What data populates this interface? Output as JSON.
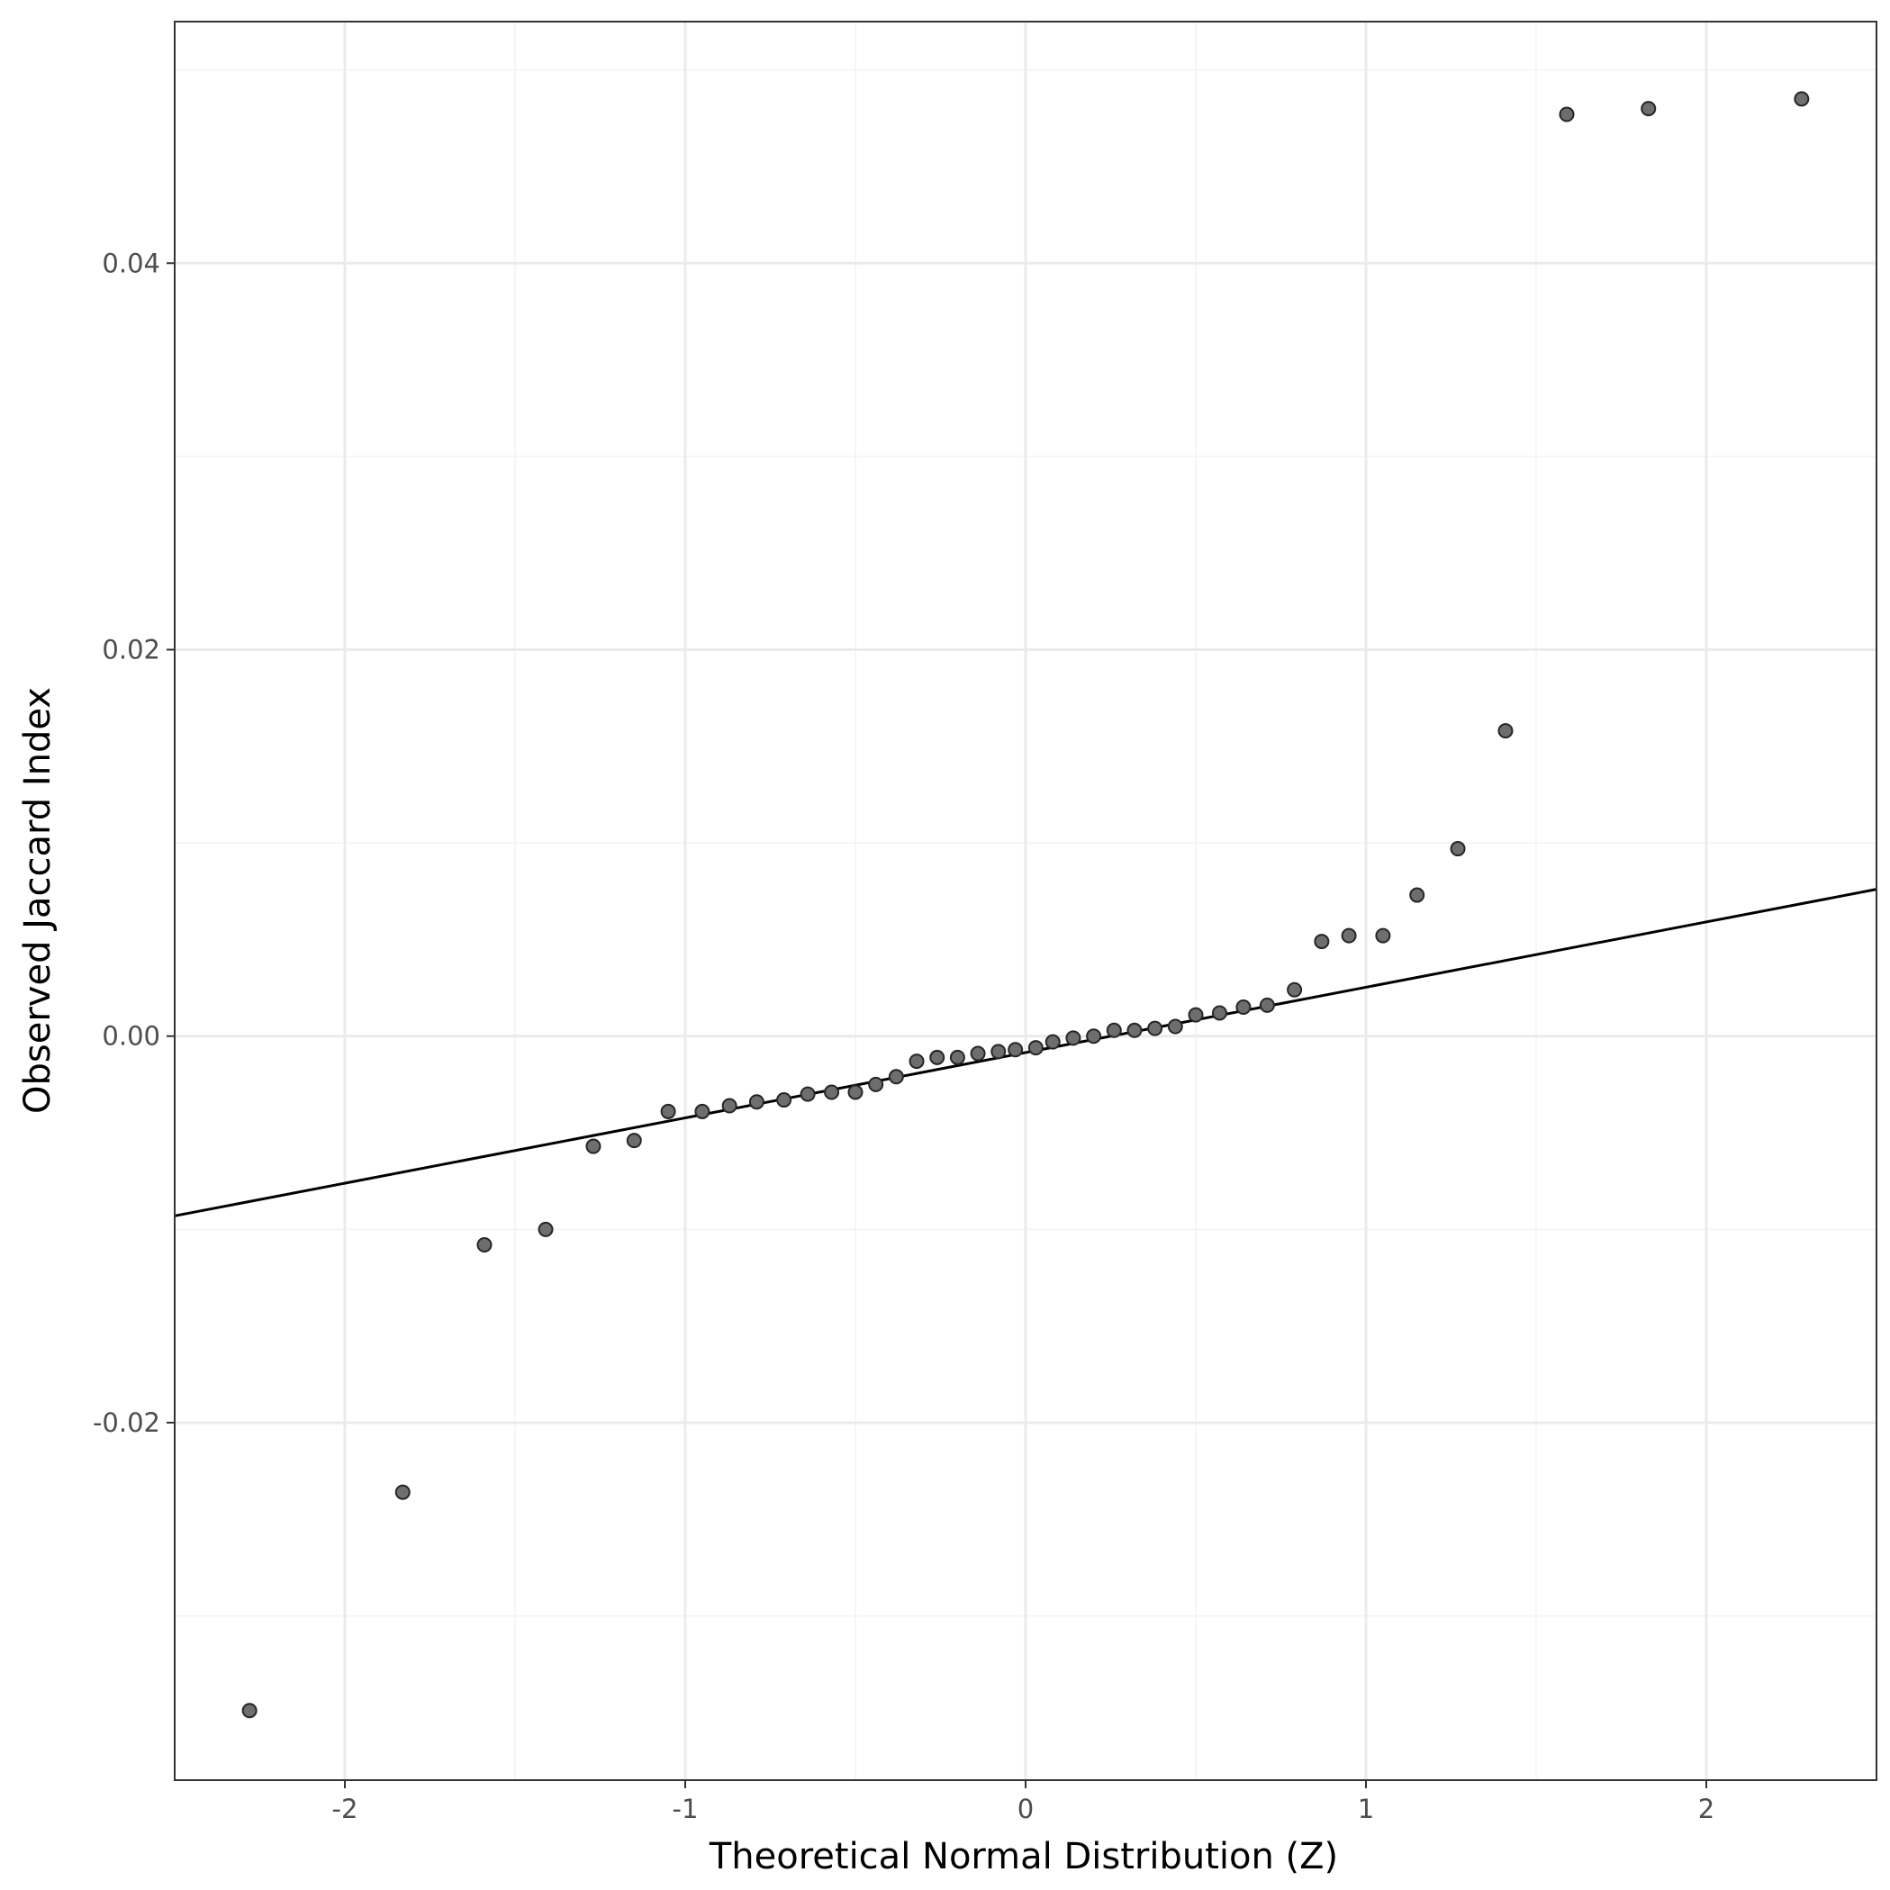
{
  "chart_data": {
    "type": "scatter",
    "subtype": "qq-plot",
    "xlabel": "Theoretical Normal Distribution (Z)",
    "ylabel": "Observed Jaccard Index",
    "xlim": [
      -2.5,
      2.5
    ],
    "ylim": [
      -0.0385,
      0.0525
    ],
    "x_ticks": [
      -2,
      -1,
      0,
      1,
      2
    ],
    "x_tick_labels": [
      "-2",
      "-1",
      "0",
      "1",
      "2"
    ],
    "y_ticks": [
      -0.02,
      0.0,
      0.02,
      0.04
    ],
    "y_tick_labels": [
      "-0.02",
      "0.00",
      "0.02",
      "0.04"
    ],
    "grid": true,
    "reference_line": {
      "x": [
        -2.5,
        2.5
      ],
      "y": [
        -0.0093,
        0.0076
      ]
    },
    "points": [
      {
        "x": -2.28,
        "y": -0.0349
      },
      {
        "x": -1.83,
        "y": -0.0236
      },
      {
        "x": -1.59,
        "y": -0.0108
      },
      {
        "x": -1.41,
        "y": -0.01
      },
      {
        "x": -1.27,
        "y": -0.0057
      },
      {
        "x": -1.15,
        "y": -0.0054
      },
      {
        "x": -1.05,
        "y": -0.0039
      },
      {
        "x": -0.95,
        "y": -0.0039
      },
      {
        "x": -0.87,
        "y": -0.0036
      },
      {
        "x": -0.79,
        "y": -0.0034
      },
      {
        "x": -0.71,
        "y": -0.0033
      },
      {
        "x": -0.64,
        "y": -0.003
      },
      {
        "x": -0.57,
        "y": -0.0029
      },
      {
        "x": -0.5,
        "y": -0.0029
      },
      {
        "x": -0.44,
        "y": -0.0025
      },
      {
        "x": -0.38,
        "y": -0.0021
      },
      {
        "x": -0.32,
        "y": -0.0013
      },
      {
        "x": -0.26,
        "y": -0.0011
      },
      {
        "x": -0.2,
        "y": -0.0011
      },
      {
        "x": -0.14,
        "y": -0.0009
      },
      {
        "x": -0.08,
        "y": -0.0008
      },
      {
        "x": -0.03,
        "y": -0.0007
      },
      {
        "x": 0.03,
        "y": -0.0006
      },
      {
        "x": 0.08,
        "y": -0.0003
      },
      {
        "x": 0.14,
        "y": -0.0001
      },
      {
        "x": 0.2,
        "y": 0.0
      },
      {
        "x": 0.26,
        "y": 0.0003
      },
      {
        "x": 0.32,
        "y": 0.0003
      },
      {
        "x": 0.38,
        "y": 0.0004
      },
      {
        "x": 0.44,
        "y": 0.0005
      },
      {
        "x": 0.5,
        "y": 0.0011
      },
      {
        "x": 0.57,
        "y": 0.0012
      },
      {
        "x": 0.64,
        "y": 0.0015
      },
      {
        "x": 0.71,
        "y": 0.0016
      },
      {
        "x": 0.79,
        "y": 0.0024
      },
      {
        "x": 0.87,
        "y": 0.0049
      },
      {
        "x": 0.95,
        "y": 0.0052
      },
      {
        "x": 1.05,
        "y": 0.0052
      },
      {
        "x": 1.15,
        "y": 0.0073
      },
      {
        "x": 1.27,
        "y": 0.0097
      },
      {
        "x": 1.41,
        "y": 0.0158
      },
      {
        "x": 1.59,
        "y": 0.0477
      },
      {
        "x": 1.83,
        "y": 0.048
      },
      {
        "x": 2.28,
        "y": 0.0485
      }
    ],
    "colors": {
      "point_fill": "#6e6e6e",
      "point_stroke": "#262626",
      "line": "#000000",
      "grid_major": "#ebebeb",
      "grid_minor": "#f3f3f3",
      "panel_border": "#333333",
      "tick_text": "#4d4d4d"
    }
  }
}
